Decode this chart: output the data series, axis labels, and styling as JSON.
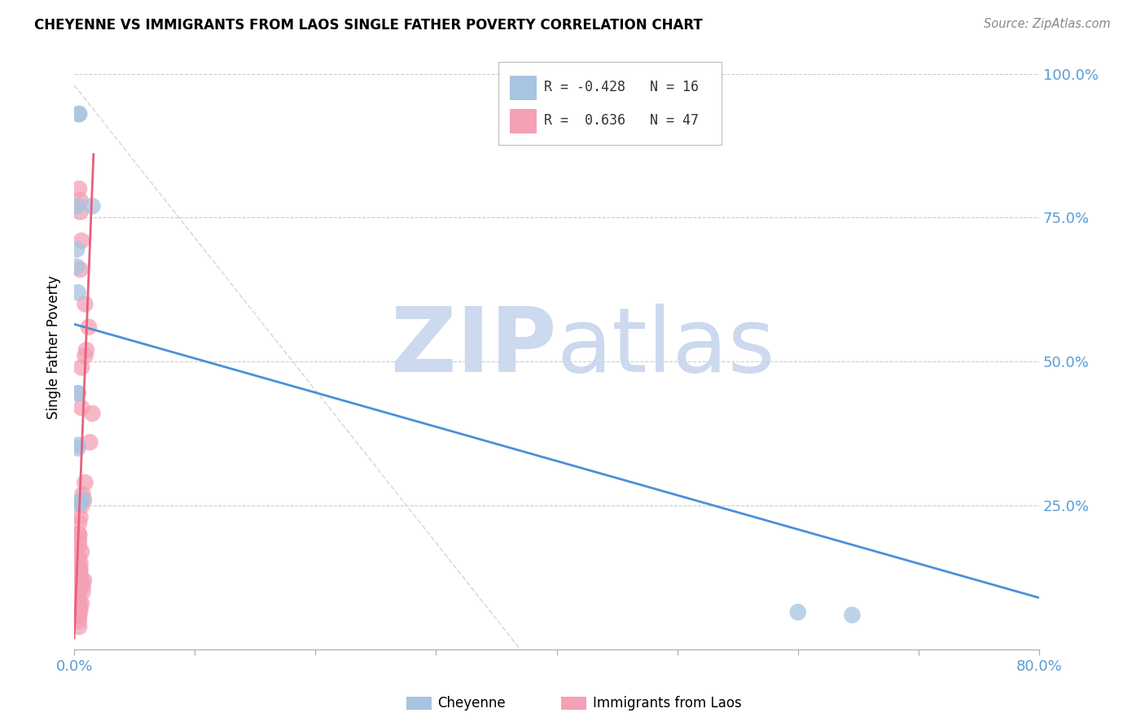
{
  "title": "CHEYENNE VS IMMIGRANTS FROM LAOS SINGLE FATHER POVERTY CORRELATION CHART",
  "source": "Source: ZipAtlas.com",
  "ylabel": "Single Father Poverty",
  "xlim": [
    0.0,
    0.8
  ],
  "ylim": [
    0.0,
    1.05
  ],
  "cheyenne_r": -0.428,
  "cheyenne_n": 16,
  "laos_r": 0.636,
  "laos_n": 47,
  "cheyenne_color": "#a8c4e0",
  "laos_color": "#f4a0b5",
  "cheyenne_line_color": "#4a90d9",
  "laos_line_color": "#e8607a",
  "diagonal_color": "#cccccc",
  "watermark_color": "#ccd9ee",
  "cheyenne_x": [
    0.004,
    0.004,
    0.015,
    0.003,
    0.002,
    0.002,
    0.003,
    0.003,
    0.003,
    0.003,
    0.003,
    0.6,
    0.645,
    0.005,
    0.007,
    0.003
  ],
  "cheyenne_y": [
    0.93,
    0.93,
    0.77,
    0.77,
    0.695,
    0.665,
    0.62,
    0.445,
    0.355,
    0.35,
    0.255,
    0.065,
    0.06,
    0.255,
    0.26,
    0.445
  ],
  "laos_x": [
    0.004,
    0.005,
    0.006,
    0.007,
    0.008,
    0.005,
    0.004,
    0.005,
    0.006,
    0.007,
    0.004,
    0.005,
    0.006,
    0.004,
    0.004,
    0.004,
    0.004,
    0.004,
    0.005,
    0.006,
    0.008,
    0.007,
    0.009,
    0.013,
    0.015,
    0.006,
    0.009,
    0.01,
    0.012,
    0.009,
    0.005,
    0.006,
    0.005,
    0.004,
    0.005,
    0.004,
    0.004,
    0.004,
    0.004,
    0.004,
    0.004,
    0.004,
    0.004,
    0.004,
    0.004,
    0.006,
    0.004
  ],
  "laos_y": [
    0.06,
    0.07,
    0.08,
    0.1,
    0.12,
    0.13,
    0.14,
    0.14,
    0.12,
    0.11,
    0.13,
    0.15,
    0.17,
    0.19,
    0.2,
    0.18,
    0.2,
    0.22,
    0.23,
    0.25,
    0.26,
    0.27,
    0.29,
    0.36,
    0.41,
    0.49,
    0.51,
    0.52,
    0.56,
    0.6,
    0.66,
    0.71,
    0.76,
    0.8,
    0.78,
    0.04,
    0.05,
    0.07,
    0.08,
    0.1,
    0.12,
    0.14,
    0.06,
    0.08,
    0.1,
    0.42,
    0.16
  ],
  "chey_line_x": [
    0.0,
    0.8
  ],
  "chey_line_y": [
    0.565,
    0.09
  ],
  "laos_line_x": [
    0.0,
    0.016
  ],
  "laos_line_y": [
    0.02,
    0.86
  ],
  "diag_line_x": [
    0.0,
    0.37
  ],
  "diag_line_y": [
    0.98,
    0.0
  ]
}
